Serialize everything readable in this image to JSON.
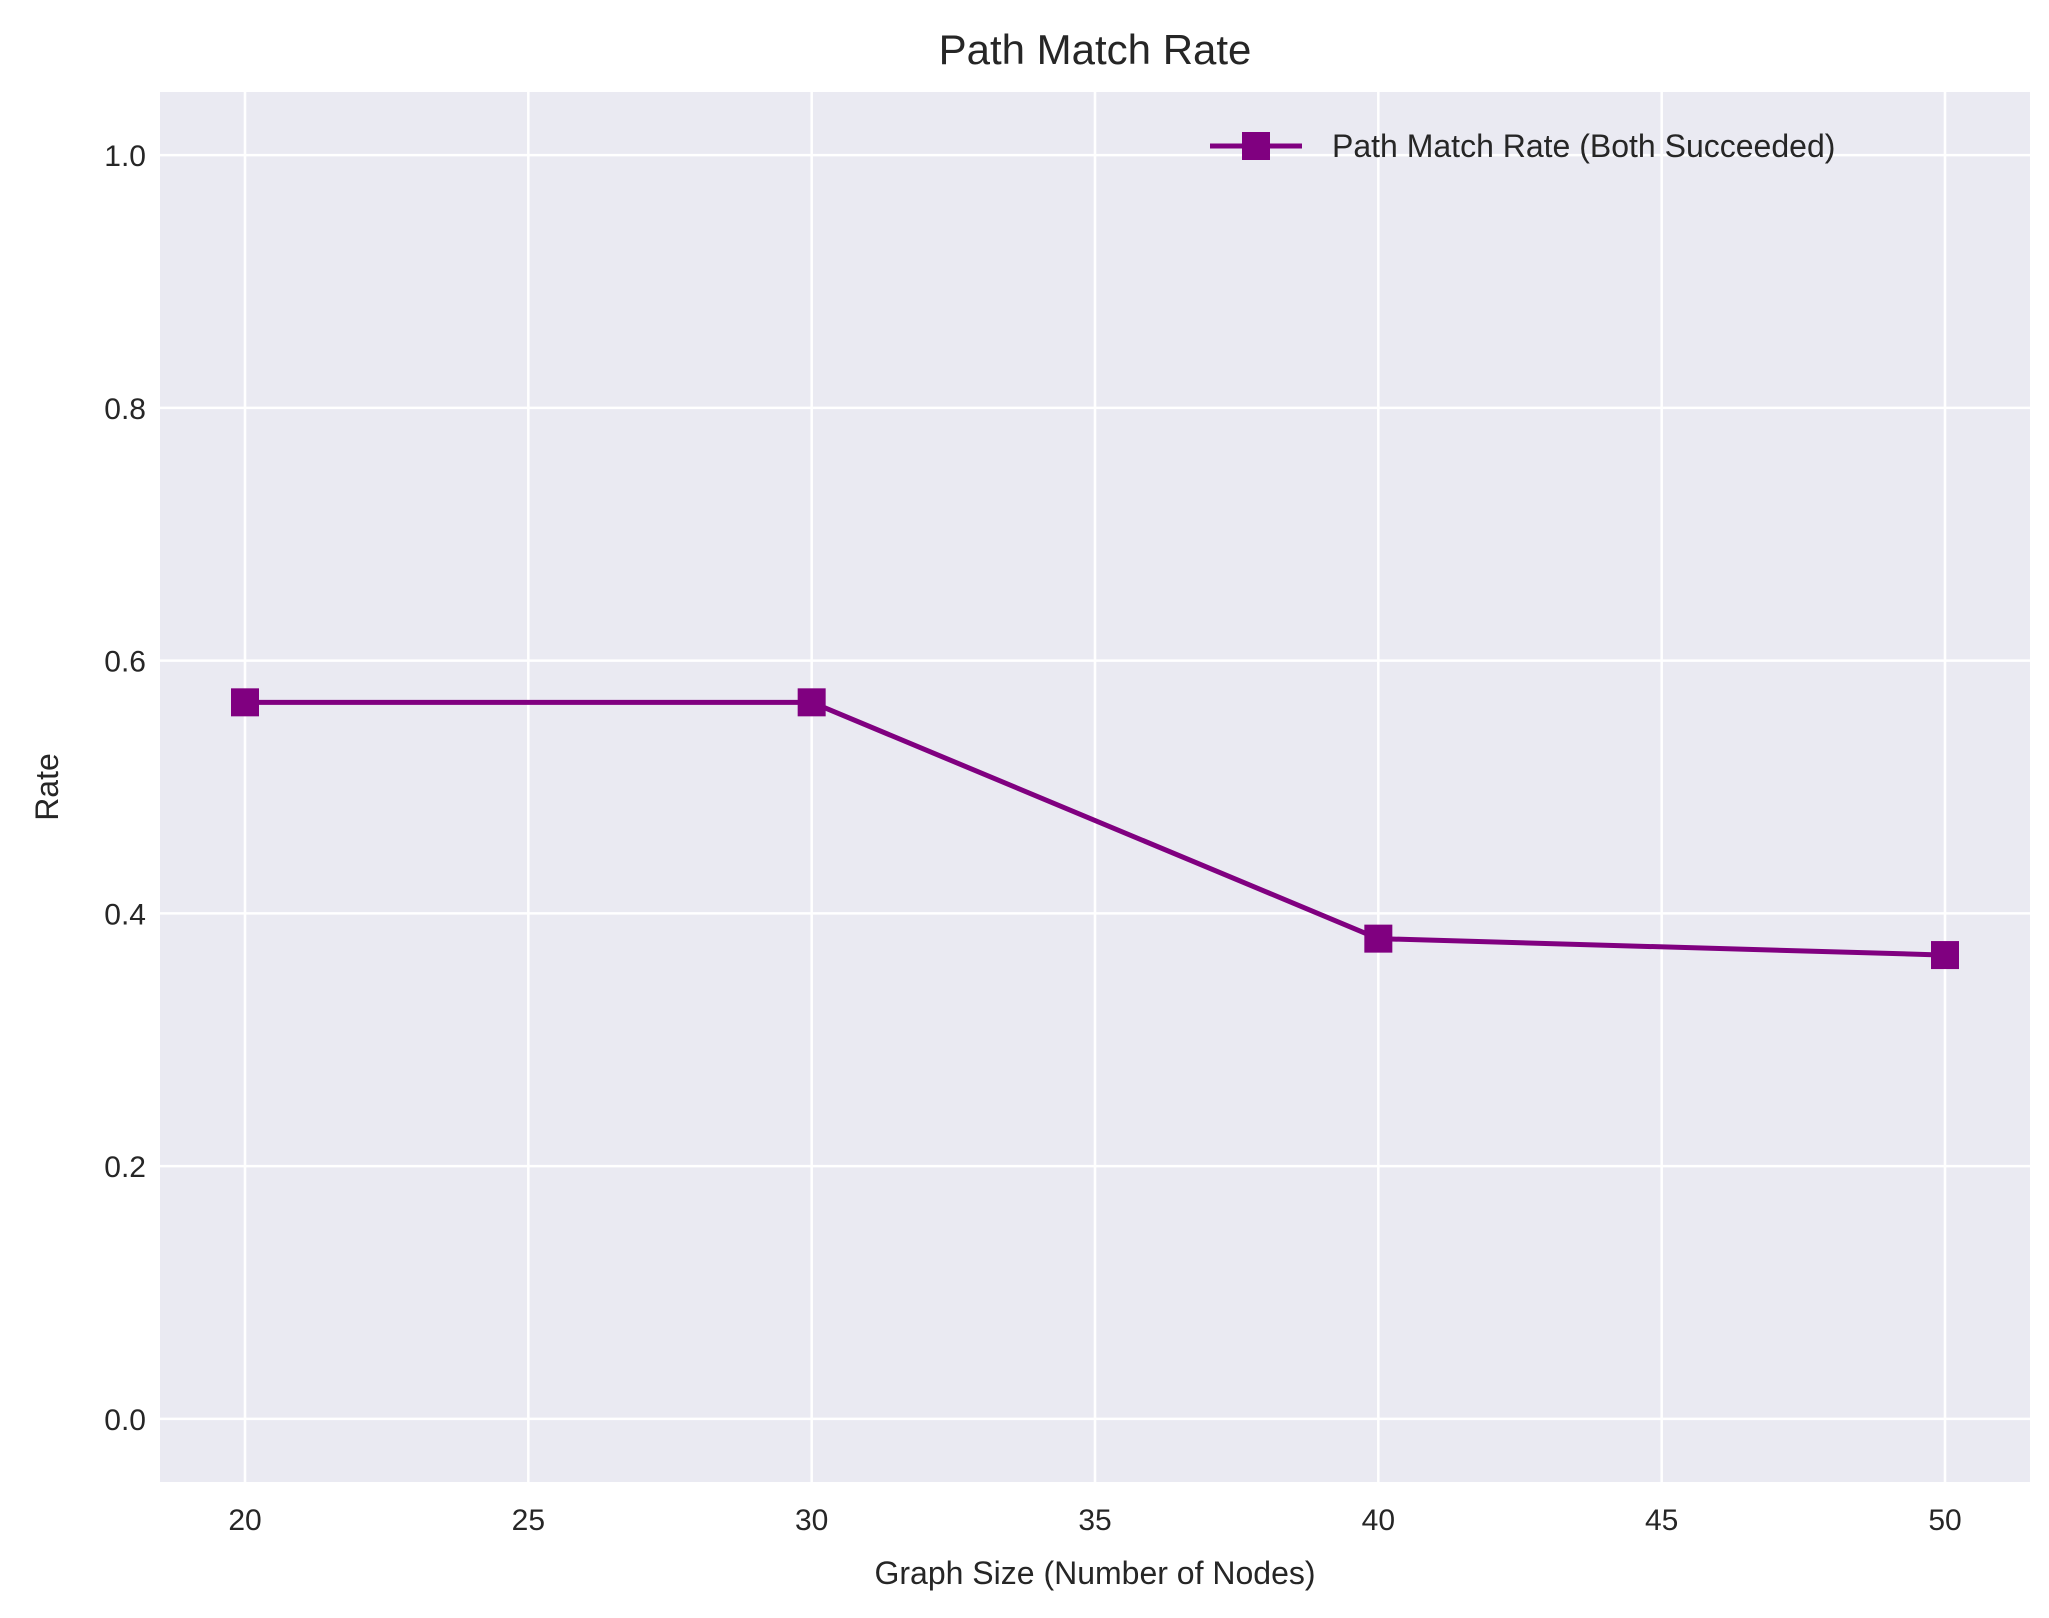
{
  "chart_data": {
    "type": "line",
    "title": "Path Match Rate",
    "xlabel": "Graph Size (Number of Nodes)",
    "ylabel": "Rate",
    "x": [
      20,
      30,
      40,
      50
    ],
    "series": [
      {
        "name": "Path Match Rate (Both Succeeded)",
        "values": [
          0.567,
          0.567,
          0.38,
          0.367
        ],
        "color": "#800080",
        "marker": "square"
      }
    ],
    "xlim": [
      18.5,
      51.5
    ],
    "ylim": [
      -0.05,
      1.05
    ],
    "xticks": [
      20,
      25,
      30,
      35,
      40,
      45,
      50
    ],
    "yticks": [
      0.0,
      0.2,
      0.4,
      0.6,
      0.8,
      1.0
    ],
    "xtick_labels": [
      "20",
      "25",
      "30",
      "35",
      "40",
      "45",
      "50"
    ],
    "ytick_labels": [
      "0.0",
      "0.2",
      "0.4",
      "0.6",
      "0.8",
      "1.0"
    ],
    "grid": true,
    "legend_position": "upper-right",
    "background_color": "#EAEAF2",
    "grid_color": "#FFFFFF"
  }
}
